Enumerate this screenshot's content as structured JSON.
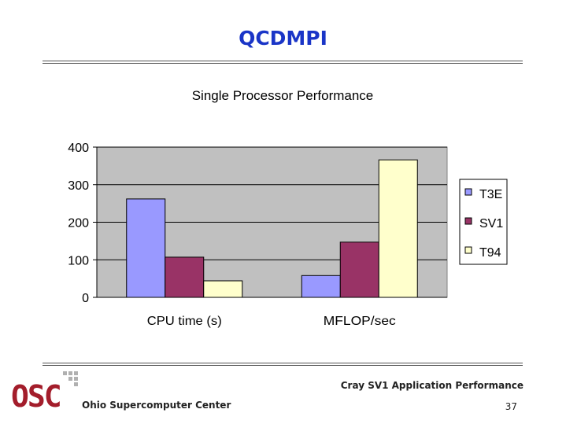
{
  "slide": {
    "title": "QCDMPI",
    "footer_right": "Cray SV1 Application Performance",
    "page_number": "37",
    "organization": "Ohio Supercomputer Center",
    "logo_text": "OSC"
  },
  "chart_data": {
    "type": "bar",
    "title": "Single Processor Performance",
    "xlabel": "",
    "ylabel": "",
    "ylim": [
      0,
      400
    ],
    "yticks": [
      0,
      100,
      200,
      300,
      400
    ],
    "categories": [
      "CPU time (s)",
      "MFLOP/sec"
    ],
    "series": [
      {
        "name": "T3E",
        "values": [
          262,
          58
        ],
        "color": "#9999ff"
      },
      {
        "name": "SV1",
        "values": [
          107,
          147
        ],
        "color": "#993366"
      },
      {
        "name": "T94",
        "values": [
          44,
          366
        ],
        "color": "#ffffcc"
      }
    ],
    "plot_background": "#c0c0c0",
    "grid": true,
    "legend_position": "right"
  }
}
